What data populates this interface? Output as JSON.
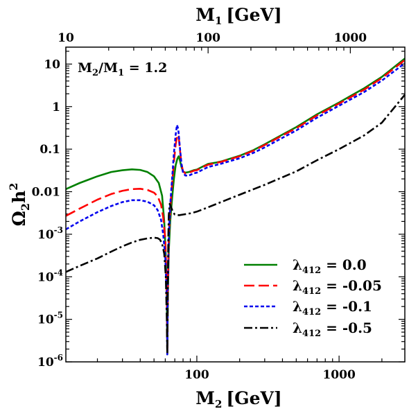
{
  "chart_data": {
    "type": "line",
    "title": "",
    "xlabel": "M",
    "xlabel_sub": "2",
    "xlabel_unit": "[GeV]",
    "x2label": "M",
    "x2label_sub": "1",
    "x2label_unit": "[GeV]",
    "ylabel": "Ω",
    "ylabel_sub": "2",
    "ylabel_mid": "h",
    "ylabel_sup": "2",
    "x_scale": "log",
    "y_scale": "log",
    "xlim": [
      12,
      2900
    ],
    "ylim": [
      1e-06,
      25
    ],
    "x2_ratio": 1.2,
    "x_ticks": [
      {
        "value": 100,
        "label": "100"
      },
      {
        "value": 1000,
        "label": "1000"
      }
    ],
    "x2_ticks": [
      {
        "value": 10,
        "label": "10"
      },
      {
        "value": 100,
        "label": "100"
      },
      {
        "value": 1000,
        "label": "1000"
      }
    ],
    "y_ticks": [
      {
        "value": 10,
        "base": "10",
        "exp": ""
      },
      {
        "value": 1,
        "base": "1",
        "exp": ""
      },
      {
        "value": 0.1,
        "base": "0.1",
        "exp": ""
      },
      {
        "value": 0.01,
        "base": "0.01",
        "exp": ""
      },
      {
        "value": 0.001,
        "base": "10",
        "exp": "-3"
      },
      {
        "value": 0.0001,
        "base": "10",
        "exp": "-4"
      },
      {
        "value": 1e-05,
        "base": "10",
        "exp": "-5"
      },
      {
        "value": 1e-06,
        "base": "10",
        "exp": "-6"
      }
    ],
    "annotation": {
      "a": "M",
      "a_sub": "2",
      "b": "/M",
      "b_sub": "1",
      "rest": " = 1.2"
    },
    "legend": {
      "placement": "lower-right"
    },
    "series": [
      {
        "name_symbol": "λ",
        "name_sub": "412",
        "name_value": " = 0.0",
        "color": "#008000",
        "dash": "solid",
        "points": [
          [
            12,
            0.0115
          ],
          [
            15,
            0.016
          ],
          [
            20,
            0.023
          ],
          [
            25,
            0.029
          ],
          [
            30,
            0.032
          ],
          [
            35,
            0.0335
          ],
          [
            40,
            0.0325
          ],
          [
            45,
            0.029
          ],
          [
            50,
            0.023
          ],
          [
            54,
            0.016
          ],
          [
            57,
            0.008
          ],
          [
            59,
            0.002
          ],
          [
            60.5,
            0.0003
          ],
          [
            61.5,
            3e-05
          ],
          [
            62,
            1.5e-06
          ],
          [
            62.5,
            3e-05
          ],
          [
            63.5,
            0.0004
          ],
          [
            65,
            0.002
          ],
          [
            67,
            0.007
          ],
          [
            69,
            0.02
          ],
          [
            71,
            0.042
          ],
          [
            73,
            0.06
          ],
          [
            74.5,
            0.068
          ],
          [
            76,
            0.055
          ],
          [
            78,
            0.038
          ],
          [
            80,
            0.03
          ],
          [
            83,
            0.028
          ],
          [
            88,
            0.029
          ],
          [
            95,
            0.032
          ],
          [
            100,
            0.033
          ],
          [
            110,
            0.039
          ],
          [
            120,
            0.045
          ],
          [
            135,
            0.048
          ],
          [
            150,
            0.052
          ],
          [
            200,
            0.07
          ],
          [
            250,
            0.095
          ],
          [
            300,
            0.13
          ],
          [
            400,
            0.22
          ],
          [
            500,
            0.33
          ],
          [
            700,
            0.66
          ],
          [
            1000,
            1.25
          ],
          [
            1500,
            2.7
          ],
          [
            2000,
            5
          ],
          [
            2900,
            13.5
          ]
        ]
      },
      {
        "name_symbol": "λ",
        "name_sub": "412",
        "name_value": " = -0.05",
        "color": "#ff0000",
        "dash": "long",
        "points": [
          [
            12,
            0.0027
          ],
          [
            15,
            0.004
          ],
          [
            20,
            0.0065
          ],
          [
            25,
            0.0088
          ],
          [
            30,
            0.0105
          ],
          [
            35,
            0.0115
          ],
          [
            40,
            0.0117
          ],
          [
            45,
            0.011
          ],
          [
            50,
            0.0095
          ],
          [
            53,
            0.0078
          ],
          [
            56,
            0.005
          ],
          [
            58,
            0.0025
          ],
          [
            60,
            0.0008
          ],
          [
            61.5,
            5e-05
          ],
          [
            62,
            1.5e-06
          ],
          [
            62.5,
            5e-05
          ],
          [
            63.5,
            0.0008
          ],
          [
            65,
            0.004
          ],
          [
            67,
            0.015
          ],
          [
            69,
            0.05
          ],
          [
            71,
            0.13
          ],
          [
            73,
            0.22
          ],
          [
            74.5,
            0.2
          ],
          [
            76,
            0.1
          ],
          [
            78,
            0.045
          ],
          [
            80,
            0.03
          ],
          [
            83,
            0.027
          ],
          [
            88,
            0.028
          ],
          [
            95,
            0.031
          ],
          [
            100,
            0.032
          ],
          [
            110,
            0.038
          ],
          [
            120,
            0.043
          ],
          [
            135,
            0.047
          ],
          [
            150,
            0.051
          ],
          [
            200,
            0.068
          ],
          [
            250,
            0.092
          ],
          [
            300,
            0.125
          ],
          [
            400,
            0.21
          ],
          [
            500,
            0.31
          ],
          [
            700,
            0.62
          ],
          [
            1000,
            1.18
          ],
          [
            1500,
            2.5
          ],
          [
            2000,
            4.7
          ],
          [
            2900,
            12.5
          ]
        ]
      },
      {
        "name_symbol": "λ",
        "name_sub": "412",
        "name_value": " = -0.1",
        "color": "#0000ee",
        "dash": "short",
        "points": [
          [
            12,
            0.0013
          ],
          [
            15,
            0.002
          ],
          [
            20,
            0.0033
          ],
          [
            25,
            0.0046
          ],
          [
            30,
            0.0057
          ],
          [
            35,
            0.0063
          ],
          [
            40,
            0.0063
          ],
          [
            45,
            0.0058
          ],
          [
            50,
            0.0048
          ],
          [
            53,
            0.0037
          ],
          [
            56,
            0.0022
          ],
          [
            58,
            0.001
          ],
          [
            60,
            0.0003
          ],
          [
            61.5,
            3e-05
          ],
          [
            62,
            1.5e-06
          ],
          [
            62.5,
            5e-05
          ],
          [
            63.5,
            0.0008
          ],
          [
            65,
            0.005
          ],
          [
            67,
            0.02
          ],
          [
            69,
            0.08
          ],
          [
            71,
            0.22
          ],
          [
            72.5,
            0.37
          ],
          [
            74,
            0.3
          ],
          [
            76,
            0.11
          ],
          [
            78,
            0.045
          ],
          [
            80,
            0.028
          ],
          [
            83,
            0.024
          ],
          [
            88,
            0.024
          ],
          [
            95,
            0.027
          ],
          [
            100,
            0.028
          ],
          [
            110,
            0.033
          ],
          [
            120,
            0.038
          ],
          [
            135,
            0.042
          ],
          [
            150,
            0.046
          ],
          [
            200,
            0.061
          ],
          [
            250,
            0.082
          ],
          [
            300,
            0.11
          ],
          [
            400,
            0.185
          ],
          [
            500,
            0.275
          ],
          [
            700,
            0.55
          ],
          [
            1000,
            1.05
          ],
          [
            1500,
            2.2
          ],
          [
            2000,
            4.1
          ],
          [
            2900,
            10.5
          ]
        ]
      },
      {
        "name_symbol": "λ",
        "name_sub": "412",
        "name_value": " = -0.5",
        "color": "#000000",
        "dash": "dashdot",
        "points": [
          [
            12,
            0.00013
          ],
          [
            15,
            0.00018
          ],
          [
            20,
            0.00027
          ],
          [
            25,
            0.00039
          ],
          [
            30,
            0.00052
          ],
          [
            35,
            0.00064
          ],
          [
            40,
            0.00074
          ],
          [
            45,
            0.0008
          ],
          [
            50,
            0.00083
          ],
          [
            53,
            0.00081
          ],
          [
            55,
            0.00075
          ],
          [
            57,
            0.0006
          ],
          [
            59,
            0.00035
          ],
          [
            60.5,
            0.0001
          ],
          [
            61.5,
            1e-05
          ],
          [
            62,
            1.5e-06
          ],
          [
            62.5,
            5e-05
          ],
          [
            63,
            0.0008
          ],
          [
            63.5,
            0.0028
          ],
          [
            64.5,
            0.0052
          ],
          [
            66,
            0.0043
          ],
          [
            68,
            0.0033
          ],
          [
            70,
            0.0029
          ],
          [
            75,
            0.0028
          ],
          [
            80,
            0.0029
          ],
          [
            90,
            0.0031
          ],
          [
            100,
            0.0034
          ],
          [
            120,
            0.0043
          ],
          [
            150,
            0.0058
          ],
          [
            200,
            0.0085
          ],
          [
            300,
            0.0145
          ],
          [
            500,
            0.03
          ],
          [
            700,
            0.055
          ],
          [
            1000,
            0.1
          ],
          [
            1500,
            0.21
          ],
          [
            2000,
            0.42
          ],
          [
            2900,
            1.9
          ]
        ]
      }
    ]
  }
}
